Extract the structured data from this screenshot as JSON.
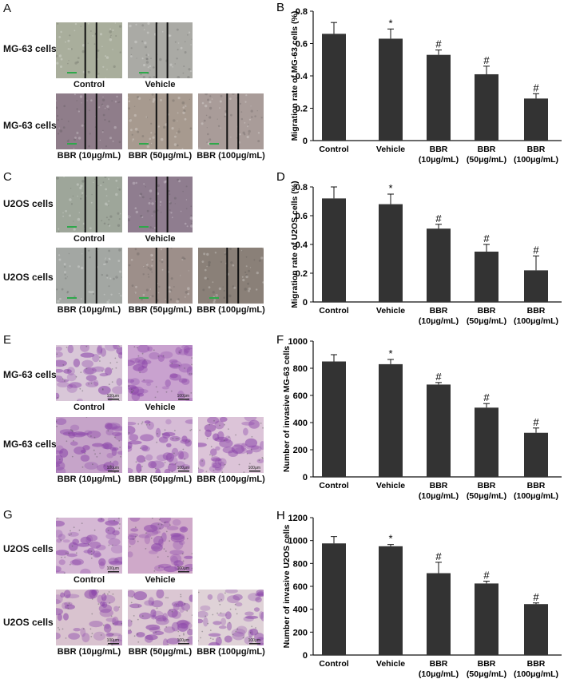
{
  "panels": {
    "A": {
      "letter": "A",
      "rows": [
        {
          "label": "MG-63 cells",
          "images": [
            {
              "caption": "Control",
              "tone": "#a9ae9c",
              "type": "wound"
            },
            {
              "caption": "Vehicle",
              "tone": "#aaaaa5",
              "type": "wound"
            }
          ]
        },
        {
          "label": "MG-63 cells",
          "images": [
            {
              "caption": "BBR (10μg/mL)",
              "tone": "#8f7d8a",
              "type": "wound"
            },
            {
              "caption": "BBR (50μg/mL)",
              "tone": "#a79a8f",
              "type": "wound"
            },
            {
              "caption": "BBR (100μg/mL)",
              "tone": "#a99c99",
              "type": "wound"
            }
          ]
        }
      ]
    },
    "C": {
      "letter": "C",
      "rows": [
        {
          "label": "U2OS cells",
          "images": [
            {
              "caption": "Control",
              "tone": "#9ea69a",
              "type": "wound"
            },
            {
              "caption": "Vehicle",
              "tone": "#8f7d8f",
              "type": "wound"
            }
          ]
        },
        {
          "label": "U2OS cells",
          "images": [
            {
              "caption": "BBR (10μg/mL)",
              "tone": "#a3a7a3",
              "type": "wound"
            },
            {
              "caption": "BBR (50μg/mL)",
              "tone": "#9d8f8a",
              "type": "wound"
            },
            {
              "caption": "BBR (100μg/mL)",
              "tone": "#8a8078",
              "type": "wound"
            }
          ]
        }
      ]
    },
    "E": {
      "letter": "E",
      "rows": [
        {
          "label": "MG-63 cells",
          "images": [
            {
              "caption": "Control",
              "tone": "#d9c7d8",
              "type": "stain",
              "scale": "100μm"
            },
            {
              "caption": "Vehicle",
              "tone": "#c9a2cf",
              "type": "stain",
              "scale": "100μm"
            }
          ]
        },
        {
          "label": "MG-63 cells",
          "images": [
            {
              "caption": "BBR (10μg/mL)",
              "tone": "#c6a4c9",
              "type": "stain",
              "scale": "100μm"
            },
            {
              "caption": "BBR (50μg/mL)",
              "tone": "#d6bcd6",
              "type": "stain",
              "scale": "100μm"
            },
            {
              "caption": "BBR (100μg/mL)",
              "tone": "#dcc4d8",
              "type": "stain",
              "scale": "100μm"
            }
          ]
        }
      ]
    },
    "G": {
      "letter": "G",
      "rows": [
        {
          "label": "U2OS cells",
          "images": [
            {
              "caption": "Control",
              "tone": "#d5b8d4",
              "type": "stain",
              "scale": "100μm"
            },
            {
              "caption": "Vehicle",
              "tone": "#cfa9c9",
              "type": "stain",
              "scale": "100μm"
            }
          ]
        },
        {
          "label": "U2OS cells",
          "images": [
            {
              "caption": "BBR (10μg/mL)",
              "tone": "#d9c3cf",
              "type": "stain",
              "scale": "100μm"
            },
            {
              "caption": "BBR (50μg/mL)",
              "tone": "#dbc7d3",
              "type": "stain",
              "scale": "100μm"
            },
            {
              "caption": "BBR (100μg/mL)",
              "tone": "#dfd2d7",
              "type": "stain",
              "scale": "100μm"
            }
          ]
        }
      ]
    }
  },
  "chart_data": [
    {
      "panel": "B",
      "type": "bar",
      "ylabel": "Migration rate of MG-63 cells (%)",
      "categories": [
        "Control",
        "Vehicle",
        "BBR\n(10μg/mL)",
        "BBR\n(50μg/mL)",
        "BBR\n(100μg/mL)"
      ],
      "values": [
        0.66,
        0.63,
        0.53,
        0.41,
        0.26
      ],
      "errors": [
        0.07,
        0.06,
        0.03,
        0.05,
        0.03
      ],
      "markers": [
        "",
        "*",
        "#",
        "#",
        "#"
      ],
      "ylim": [
        0,
        0.8
      ],
      "yticks": [
        0,
        0.2,
        0.4,
        0.6,
        0.8
      ],
      "yticklabels": [
        "0",
        "0.2",
        "0.4",
        "0.6",
        "0.8"
      ],
      "bar_color": "#333333"
    },
    {
      "panel": "D",
      "type": "bar",
      "ylabel": "Migration rate of U2OS cells (%)",
      "categories": [
        "Control",
        "Vehicle",
        "BBR\n(10μg/mL)",
        "BBR\n(50μg/mL)",
        "BBR\n(100μg/mL)"
      ],
      "values": [
        0.72,
        0.68,
        0.51,
        0.35,
        0.22
      ],
      "errors": [
        0.08,
        0.07,
        0.03,
        0.05,
        0.1
      ],
      "markers": [
        "",
        "*",
        "#",
        "#",
        "#"
      ],
      "ylim": [
        0,
        0.8
      ],
      "yticks": [
        0,
        0.2,
        0.4,
        0.6,
        0.8
      ],
      "yticklabels": [
        "0",
        "0.2",
        "0.4",
        "0.6",
        "0.8"
      ],
      "bar_color": "#333333"
    },
    {
      "panel": "F",
      "type": "bar",
      "ylabel": "Number of invasive MG-63 cells",
      "categories": [
        "Control",
        "Vehicle",
        "BBR\n(10μg/mL)",
        "BBR\n(50μg/mL)",
        "BBR\n(100μg/mL)"
      ],
      "values": [
        850,
        830,
        680,
        510,
        325
      ],
      "errors": [
        50,
        35,
        15,
        30,
        35
      ],
      "markers": [
        "",
        "*",
        "#",
        "#",
        "#"
      ],
      "ylim": [
        0,
        1000
      ],
      "yticks": [
        0,
        200,
        400,
        600,
        800,
        1000
      ],
      "yticklabels": [
        "0",
        "200",
        "400",
        "600",
        "800",
        "1000"
      ],
      "bar_color": "#333333"
    },
    {
      "panel": "H",
      "type": "bar",
      "ylabel": "Number of invasive U2OS cells",
      "categories": [
        "Control",
        "Vehicle",
        "BBR\n(10μg/mL)",
        "BBR\n(50μg/mL)",
        "BBR\n(100μg/mL)"
      ],
      "values": [
        975,
        950,
        715,
        625,
        445
      ],
      "errors": [
        60,
        15,
        95,
        20,
        10
      ],
      "markers": [
        "",
        "*",
        "#",
        "#",
        "#"
      ],
      "ylim": [
        0,
        1200
      ],
      "yticks": [
        0,
        200,
        400,
        600,
        800,
        1000,
        1200
      ],
      "yticklabels": [
        "0",
        "200",
        "400",
        "600",
        "800",
        "1000",
        "1200"
      ],
      "bar_color": "#333333"
    }
  ]
}
